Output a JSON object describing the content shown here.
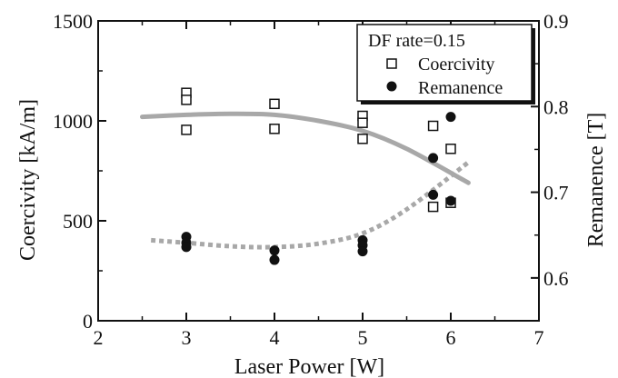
{
  "chart_data": {
    "type": "scatter",
    "xlabel": "Laser Power [W]",
    "ylabel_left": "Coercivity [kA/m]",
    "ylabel_right": "Remanence [T]",
    "xlim": [
      2,
      7
    ],
    "xticks": [
      2,
      3,
      4,
      5,
      6,
      7
    ],
    "ylim_left": [
      0,
      1500
    ],
    "yticks_left": [
      0,
      500,
      1000,
      1500
    ],
    "ylim_right": [
      0.55,
      0.9
    ],
    "yticks_right": [
      0.6,
      0.7,
      0.8,
      0.9
    ],
    "ytick_labels_right": [
      "0.6",
      "0.7",
      "0.8",
      "0.9"
    ],
    "grid": false,
    "legend": {
      "placement": "top-right",
      "title": "DF rate=0.15",
      "entries": [
        "Coercivity",
        "Remanence"
      ]
    },
    "series": [
      {
        "name": "Coercivity",
        "axis": "left",
        "marker": "open-square",
        "points": [
          {
            "x": 3,
            "y": 1140
          },
          {
            "x": 3,
            "y": 1105
          },
          {
            "x": 3,
            "y": 955
          },
          {
            "x": 4,
            "y": 1085
          },
          {
            "x": 4,
            "y": 960
          },
          {
            "x": 5,
            "y": 1025
          },
          {
            "x": 5,
            "y": 990
          },
          {
            "x": 5,
            "y": 910
          },
          {
            "x": 5.8,
            "y": 975
          },
          {
            "x": 5.8,
            "y": 570
          },
          {
            "x": 6,
            "y": 860
          },
          {
            "x": 6,
            "y": 590
          }
        ]
      },
      {
        "name": "Remanence",
        "axis": "right",
        "marker": "filled-circle",
        "points": [
          {
            "x": 3,
            "y": 0.648
          },
          {
            "x": 3,
            "y": 0.641
          },
          {
            "x": 3,
            "y": 0.636
          },
          {
            "x": 4,
            "y": 0.632
          },
          {
            "x": 4,
            "y": 0.621
          },
          {
            "x": 5,
            "y": 0.644
          },
          {
            "x": 5,
            "y": 0.638
          },
          {
            "x": 5,
            "y": 0.631
          },
          {
            "x": 5.8,
            "y": 0.74
          },
          {
            "x": 5.8,
            "y": 0.697
          },
          {
            "x": 6,
            "y": 0.788
          },
          {
            "x": 6,
            "y": 0.69
          }
        ]
      }
    ],
    "trend_lines": [
      {
        "for": "Coercivity",
        "axis": "left",
        "style": "solid",
        "color": "#a8a8a8",
        "x": [
          2.5,
          3.0,
          3.5,
          4.0,
          4.5,
          5.0,
          5.5,
          6.2
        ],
        "y": [
          1020,
          1030,
          1035,
          1030,
          1000,
          950,
          860,
          690
        ]
      },
      {
        "for": "Remanence",
        "axis": "right",
        "style": "dotted",
        "color": "#a8a8a8",
        "x": [
          2.6,
          3.0,
          3.5,
          4.0,
          4.5,
          5.0,
          5.5,
          6.2
        ],
        "y": [
          0.644,
          0.641,
          0.637,
          0.636,
          0.64,
          0.652,
          0.68,
          0.735
        ]
      }
    ],
    "colors": {
      "axis": "#111111",
      "marker": "#111111",
      "trend": "#a8a8a8"
    }
  }
}
